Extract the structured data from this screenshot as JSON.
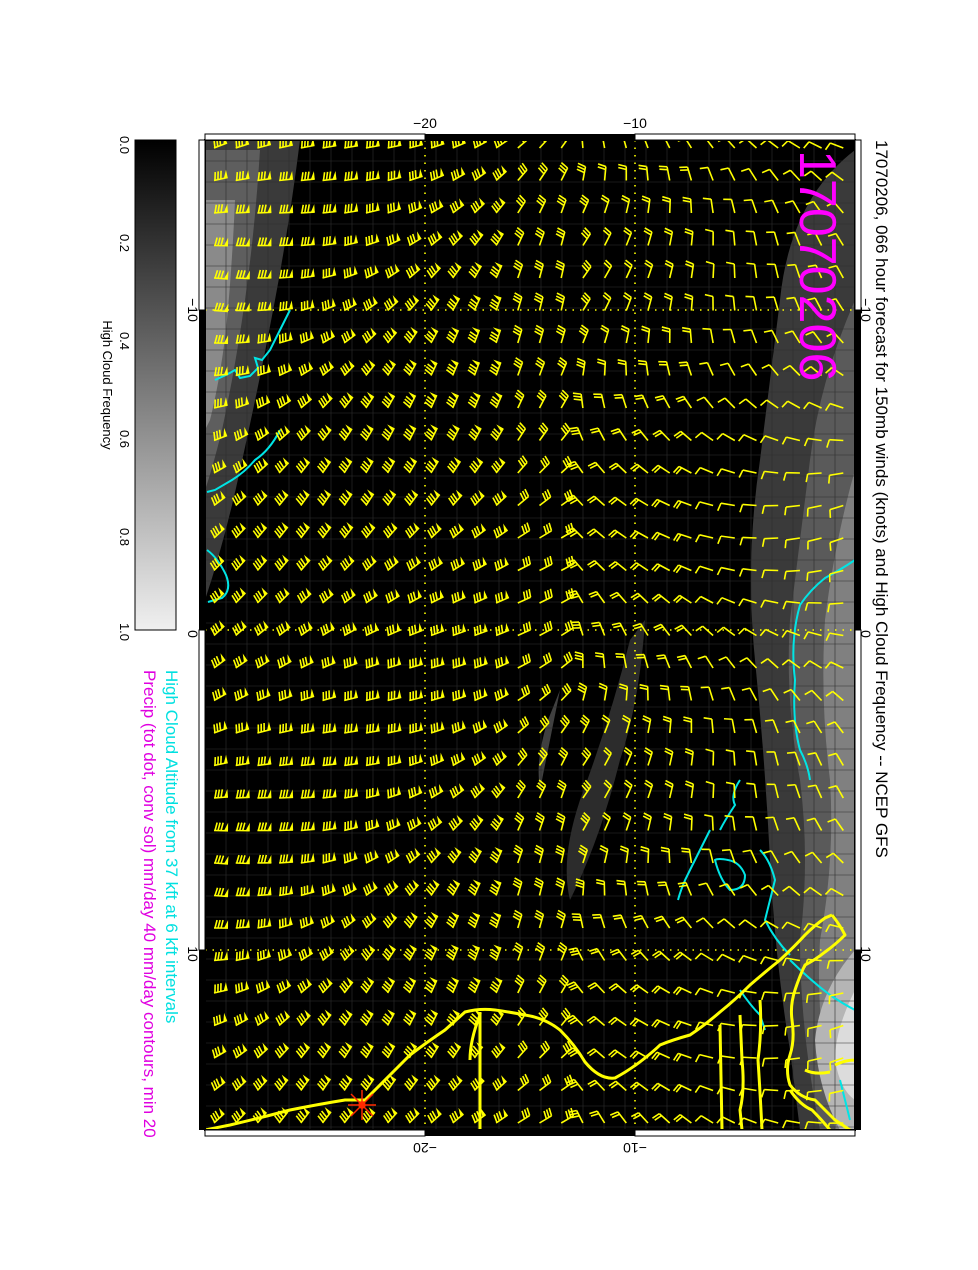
{
  "title": "17070206, 066 hour forecast for 150mb winds (knots) and High Cloud Frequency -- NCEP GFS",
  "stamp": "17070206",
  "colorbar": {
    "label": "High Cloud Frequency",
    "ticks": [
      "0.0",
      "0.2",
      "0.4",
      "0.6",
      "0.8",
      "1.0"
    ]
  },
  "legend": {
    "cloud_altitude": "High Cloud Altitude from 37 kft at 6 kft intervals",
    "precip": "Precip (tot dot, conv sol) mm/day 40 mm/day contours, min 20"
  },
  "axes": {
    "top_ticks": [
      "−20",
      "−10"
    ],
    "bottom_ticks": [
      "−20",
      "−10"
    ],
    "left_ticks": [
      "−10",
      "0",
      "10"
    ],
    "right_ticks": [
      "−10",
      "0",
      "10"
    ]
  },
  "colors": {
    "barb": "#ffff00",
    "coast": "#ffff00",
    "contour": "#00e5e5",
    "stamp": "#ff00ff",
    "legend_cyan": "#00e0e0",
    "legend_magenta": "#e000e0",
    "background": "#000000"
  }
}
